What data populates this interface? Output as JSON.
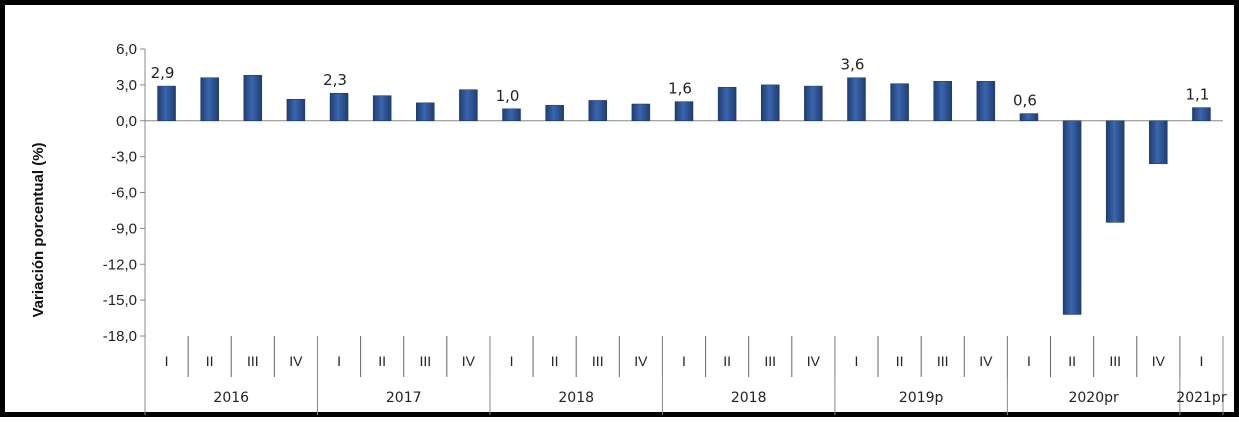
{
  "chart_data": {
    "type": "bar",
    "ylabel": "Variación porcentual  (%)",
    "ylim": [
      -18,
      6
    ],
    "yticks": [
      "6,0",
      "3,0",
      "0,0",
      "-3,0",
      "-6,0",
      "-9,0",
      "-12,0",
      "-15,0",
      "-18,0"
    ],
    "ytick_values": [
      6,
      3,
      0,
      -3,
      -6,
      -9,
      -12,
      -15,
      -18
    ],
    "quarters": [
      "I",
      "II",
      "III",
      "IV",
      "I",
      "II",
      "III",
      "IV",
      "I",
      "II",
      "III",
      "IV",
      "I",
      "II",
      "III",
      "IV",
      "I",
      "II",
      "III",
      "IV",
      "I",
      "II",
      "III",
      "IV",
      "I"
    ],
    "years": [
      "2016",
      "2017",
      "2018",
      "2018",
      "2019p",
      "2020pr",
      "2021pr"
    ],
    "year_quarter_counts": [
      4,
      4,
      4,
      4,
      4,
      4,
      1
    ],
    "values": [
      2.9,
      3.6,
      3.8,
      1.8,
      2.3,
      2.1,
      1.5,
      2.6,
      1.0,
      1.3,
      1.7,
      1.4,
      1.6,
      2.8,
      3.0,
      2.9,
      3.6,
      3.1,
      3.3,
      3.3,
      0.6,
      -16.2,
      -8.5,
      -3.6,
      1.1
    ],
    "data_labels": [
      {
        "index": 0,
        "text": "2,9"
      },
      {
        "index": 4,
        "text": "2,3"
      },
      {
        "index": 8,
        "text": "1,0"
      },
      {
        "index": 12,
        "text": "1,6"
      },
      {
        "index": 16,
        "text": "3,6"
      },
      {
        "index": 20,
        "text": "0,6"
      },
      {
        "index": 24,
        "text": "1,1"
      }
    ],
    "bar_color": "#2f5597",
    "grid": false
  }
}
